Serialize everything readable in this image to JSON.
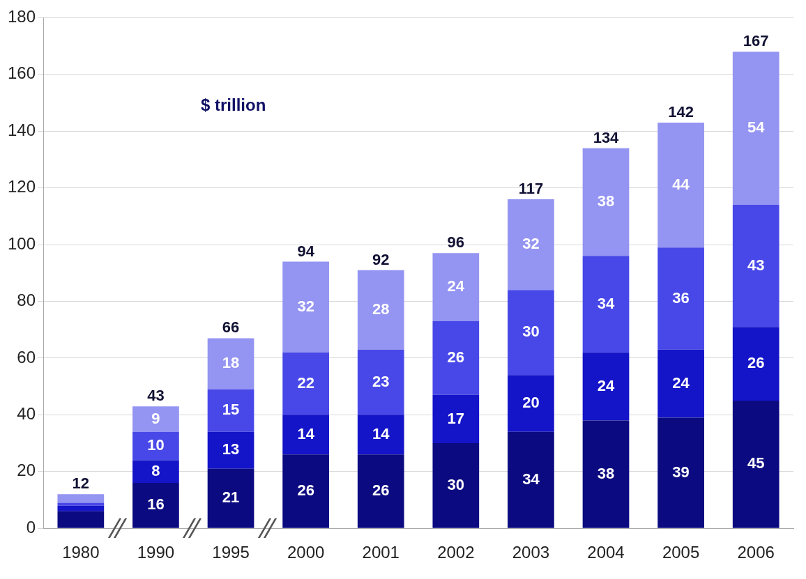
{
  "chart_data": {
    "type": "bar",
    "stacked": true,
    "categories": [
      "1980",
      "1990",
      "1995",
      "2000",
      "2001",
      "2002",
      "2003",
      "2004",
      "2005",
      "2006"
    ],
    "series": [
      {
        "color": "#0c0a80",
        "values": [
          6,
          16,
          21,
          26,
          26,
          30,
          34,
          38,
          39,
          45
        ],
        "value_labels": [
          null,
          "16",
          "21",
          "26",
          "26",
          "30",
          "34",
          "38",
          "39",
          "45"
        ]
      },
      {
        "color": "#1414c8",
        "values": [
          2,
          8,
          13,
          14,
          14,
          17,
          20,
          24,
          24,
          26
        ],
        "value_labels": [
          null,
          "8",
          "13",
          "14",
          "14",
          "17",
          "20",
          "24",
          "24",
          "26"
        ]
      },
      {
        "color": "#4848e8",
        "values": [
          1,
          10,
          15,
          22,
          23,
          26,
          30,
          34,
          36,
          43
        ],
        "value_labels": [
          null,
          "10",
          "15",
          "22",
          "23",
          "26",
          "30",
          "34",
          "36",
          "43"
        ]
      },
      {
        "color": "#9494f2",
        "values": [
          3,
          9,
          18,
          32,
          28,
          24,
          32,
          38,
          44,
          54
        ],
        "value_labels": [
          null,
          "9",
          "18",
          "32",
          "28",
          "24",
          "32",
          "38",
          "44",
          "54"
        ]
      }
    ],
    "totals": [
      "12",
      "43",
      "66",
      "94",
      "92",
      "96",
      "117",
      "134",
      "142",
      "167"
    ],
    "ylim": [
      0,
      180
    ],
    "yticks": [
      0,
      20,
      40,
      60,
      80,
      100,
      120,
      140,
      160,
      180
    ],
    "grid": "y",
    "legend": false,
    "annotations": [
      "$ trillion"
    ]
  }
}
